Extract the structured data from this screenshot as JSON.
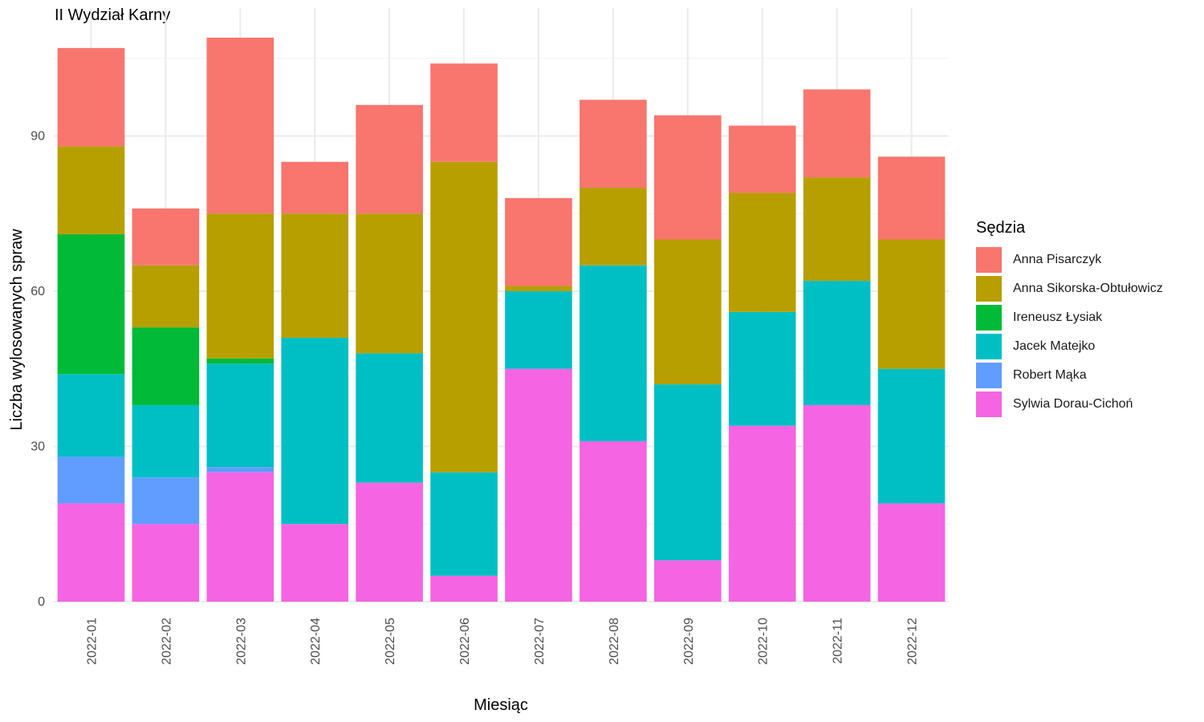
{
  "title": "II Wydział Karny",
  "chart_data": {
    "type": "bar",
    "stacked": true,
    "xlabel": "Miesiąc",
    "ylabel": "Liczba wylosowanych spraw",
    "ylim": [
      0,
      115
    ],
    "yticks": [
      0,
      30,
      60,
      90
    ],
    "grid": true,
    "legend_title": "Sędzia",
    "legend_position": "right",
    "categories": [
      "2022-01",
      "2022-02",
      "2022-03",
      "2022-04",
      "2022-05",
      "2022-06",
      "2022-07",
      "2022-08",
      "2022-09",
      "2022-10",
      "2022-11",
      "2022-12"
    ],
    "series": [
      {
        "name": "Anna Pisarczyk",
        "color": "#F8766D",
        "values": [
          19,
          11,
          34,
          10,
          21,
          19,
          17,
          17,
          24,
          13,
          17,
          16
        ]
      },
      {
        "name": "Anna Sikorska-Obtułowicz",
        "color": "#B79F00",
        "values": [
          17,
          12,
          28,
          24,
          27,
          60,
          1,
          15,
          28,
          23,
          20,
          25
        ]
      },
      {
        "name": "Ireneusz Łysiak",
        "color": "#00BA38",
        "values": [
          27,
          15,
          1,
          0,
          0,
          0,
          0,
          0,
          0,
          0,
          0,
          0
        ]
      },
      {
        "name": "Jacek Matejko",
        "color": "#00BFC4",
        "values": [
          16,
          14,
          20,
          36,
          25,
          20,
          15,
          34,
          34,
          22,
          24,
          26
        ]
      },
      {
        "name": "Robert Mąka",
        "color": "#619CFF",
        "values": [
          9,
          9,
          1,
          0,
          0,
          0,
          0,
          0,
          0,
          0,
          0,
          0
        ]
      },
      {
        "name": "Sylwia Dorau-Cichoń",
        "color": "#F564E3",
        "values": [
          19,
          15,
          25,
          15,
          23,
          5,
          45,
          31,
          8,
          34,
          38,
          19
        ]
      }
    ]
  }
}
